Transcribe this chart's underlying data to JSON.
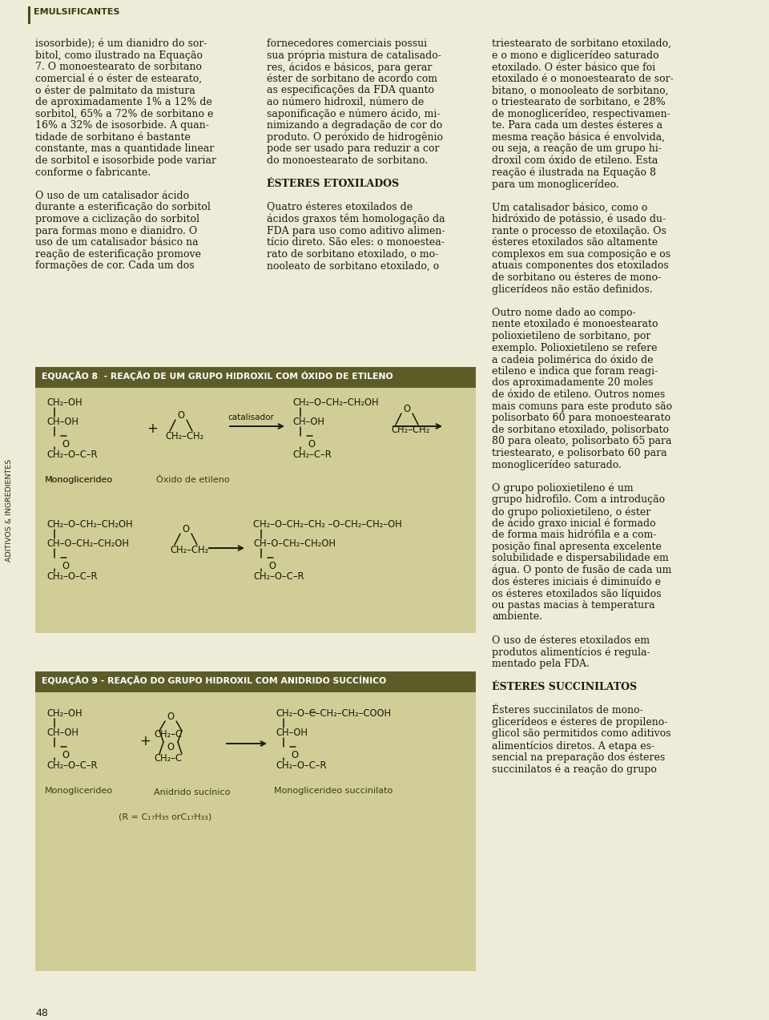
{
  "bg_color": "#eeecd8",
  "eq_header_bg": "#5c5c28",
  "eq_body_bg": "#d0ce96",
  "header_text": "EMULSIFICANTES",
  "sidebar_text": "ADITIVOS & INGREDIENTES",
  "page_number": "48",
  "eq8_title": "EQUAÇÃO 8  - REAÇÃO DE UM GRUPO HIDROXIL COM ÓXIDO DE ETILENO",
  "eq9_title": "EQUAÇÃO 9 - REAÇÃO DO GRUPO HIDROXIL COM ANIDRIDO SUCCÍNICO",
  "col1": [
    [
      "isosorbide); é um dianidro do sor-",
      false
    ],
    [
      "bitol, como ilustrado na Equação",
      false
    ],
    [
      "7. O monoestearato de sorbitano",
      false
    ],
    [
      "comercial é o éster de estearato,",
      false
    ],
    [
      "o éster de palmitato da mistura",
      false
    ],
    [
      "de aproximadamente 1% a 12% de",
      false
    ],
    [
      "sorbitol, 65% a 72% de sorbitano e",
      false
    ],
    [
      "16% a 32% de isosorbide. A quan-",
      false
    ],
    [
      "tidade de sorbitano é bastante",
      false
    ],
    [
      "constante, mas a quantidade linear",
      false
    ],
    [
      "de sorbitol e isosorbide pode variar",
      false
    ],
    [
      "conforme o fabricante.",
      false
    ],
    [
      "",
      false
    ],
    [
      "O uso de um catalisador ácido",
      false
    ],
    [
      "durante a esterificação do sorbitol",
      false
    ],
    [
      "promove a ciclização do sorbitol",
      false
    ],
    [
      "para formas mono e dianidro. O",
      false
    ],
    [
      "uso de um catalisador básico na",
      false
    ],
    [
      "reação de esterificação promove",
      false
    ],
    [
      "formações de cor. Cada um dos",
      false
    ]
  ],
  "col2": [
    [
      "fornecedores comerciais possui",
      false
    ],
    [
      "sua própria mistura de catalisado-",
      false
    ],
    [
      "res, ácidos e básicos, para gerar",
      false
    ],
    [
      "éster de sorbitano de acordo com",
      false
    ],
    [
      "as especificações da FDA quanto",
      false
    ],
    [
      "ao número hidroxil, número de",
      false
    ],
    [
      "saponificação e número ácido, mi-",
      false
    ],
    [
      "nimizando a degradação de cor do",
      false
    ],
    [
      "produto. O peróxido de hidrogênio",
      false
    ],
    [
      "pode ser usado para reduzir a cor",
      false
    ],
    [
      "do monoestearato de sorbitano.",
      false
    ],
    [
      "",
      false
    ],
    [
      "ÉSTERES ETOXILADOS",
      true
    ],
    [
      "",
      false
    ],
    [
      "Quatro ésteres etoxilados de",
      false
    ],
    [
      "ácidos graxos têm homologação da",
      false
    ],
    [
      "FDA para uso como aditivo alimen-",
      false
    ],
    [
      "tício direto. São eles: o monoestea-",
      false
    ],
    [
      "rato de sorbitano etoxilado, o mo-",
      false
    ],
    [
      "nooleato de sorbitano etoxilado, o",
      false
    ]
  ],
  "col3": [
    [
      "triestearato de sorbitano etoxilado,",
      false
    ],
    [
      "e o mono e diglicerídeo saturado",
      false
    ],
    [
      "etoxilado. O éster básico que foi",
      false
    ],
    [
      "etoxilado é o monoestearato de sor-",
      false
    ],
    [
      "bitano, o monooleato de sorbitano,",
      false
    ],
    [
      "o triestearato de sorbitano, e 28%",
      false
    ],
    [
      "de monoglicerídeo, respectivamen-",
      false
    ],
    [
      "te. Para cada um destes ésteres a",
      false
    ],
    [
      "mesma reação básica é envolvida,",
      false
    ],
    [
      "ou seja, a reação de um grupo hi-",
      false
    ],
    [
      "droxil com óxido de etileno. Esta",
      false
    ],
    [
      "reação é ilustrada na Equação 8",
      false
    ],
    [
      "para um monoglicerídeo.",
      false
    ],
    [
      "",
      false
    ],
    [
      "Um catalisador básico, como o",
      false
    ],
    [
      "hidróxido de potássio, é usado du-",
      false
    ],
    [
      "rante o processo de etoxilação. Os",
      false
    ],
    [
      "ésteres etoxilados são altamente",
      false
    ],
    [
      "complexos em sua composição e os",
      false
    ],
    [
      "atuais componentes dos etoxilados",
      false
    ],
    [
      "de sorbitano ou ésteres de mono-",
      false
    ],
    [
      "glicerídeos não estão definidos.",
      false
    ],
    [
      "",
      false
    ],
    [
      "Outro nome dado ao compo-",
      false
    ],
    [
      "nente etoxilado é monoestearato",
      false
    ],
    [
      "polioxietileno de sorbitano, por",
      false
    ],
    [
      "exemplo. Polioxietileno se refere",
      false
    ],
    [
      "a cadeia polimérica do óxido de",
      false
    ],
    [
      "etileno e indica que foram reagi-",
      false
    ],
    [
      "dos aproximadamente 20 moles",
      false
    ],
    [
      "de óxido de etileno. Outros nomes",
      false
    ],
    [
      "mais comuns para este produto são",
      false
    ],
    [
      "polisorbato 60 para monoestearato",
      false
    ],
    [
      "de sorbitano etoxilado, polisorbato",
      false
    ],
    [
      "80 para oleato, polisorbato 65 para",
      false
    ],
    [
      "triestearato, e polisorbato 60 para",
      false
    ],
    [
      "monoglicerídeo saturado.",
      false
    ],
    [
      "",
      false
    ],
    [
      "O grupo polioxietileno é um",
      false
    ],
    [
      "grupo hidrofilo. Com a introdução",
      false
    ],
    [
      "do grupo polioxietileno, o éster",
      false
    ],
    [
      "de ácido graxo inicial é formado",
      false
    ],
    [
      "de forma mais hidrófila e a com-",
      false
    ],
    [
      "posição final apresenta excelente",
      false
    ],
    [
      "solubilidade e dispersabilidade em",
      false
    ],
    [
      "água. O ponto de fusão de cada um",
      false
    ],
    [
      "dos ésteres iniciais é diminuído e",
      false
    ],
    [
      "os ésteres etoxilados são líquidos",
      false
    ],
    [
      "ou pastas macias à temperatura",
      false
    ],
    [
      "ambiente.",
      false
    ],
    [
      "",
      false
    ],
    [
      "O uso de ésteres etoxilados em",
      false
    ],
    [
      "produtos alimentícios é regula-",
      false
    ],
    [
      "mentado pela FDA.",
      false
    ],
    [
      "",
      false
    ],
    [
      "ÉSTERES SUCCINILATOS",
      true
    ],
    [
      "",
      false
    ],
    [
      "Ésteres succinilatos de mono-",
      false
    ],
    [
      "glicerídeos e ésteres de propileno-",
      false
    ],
    [
      "glicol são permitidos como aditivos",
      false
    ],
    [
      "alimentícios diretos. A etapa es-",
      false
    ],
    [
      "sencial na preparação dos ésteres",
      false
    ],
    [
      "succinilatos é a reação do grupo",
      false
    ]
  ]
}
